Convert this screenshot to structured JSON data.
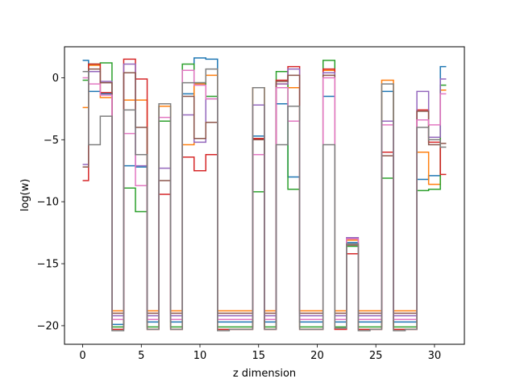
{
  "chart_data": {
    "type": "line",
    "drawstyle": "steps-mid",
    "title": "",
    "xlabel": "z dimension",
    "ylabel": "log(w)",
    "xlim": [
      -1.55,
      32.55
    ],
    "ylim": [
      -21.5,
      2.5
    ],
    "xticks": [
      0,
      5,
      10,
      15,
      20,
      25,
      30
    ],
    "yticks": [
      0,
      -5,
      -10,
      -15,
      -20
    ],
    "x": [
      0,
      1,
      2,
      3,
      4,
      5,
      6,
      7,
      8,
      9,
      10,
      11,
      12,
      13,
      14,
      15,
      16,
      17,
      18,
      19,
      20,
      21,
      22,
      23,
      24,
      25,
      26,
      27,
      28,
      29,
      30,
      31
    ],
    "grid": false,
    "legend": "none",
    "series": [
      {
        "color": "#1f77b4",
        "values": [
          1.4,
          -1.1,
          -1.3,
          -19.9,
          -7.1,
          -7.2,
          -19.7,
          -2.3,
          -19.7,
          -1.3,
          1.6,
          1.5,
          -19.7,
          -19.7,
          -19.7,
          -4.7,
          -19.7,
          -2.1,
          -8.0,
          -19.7,
          -19.7,
          -1.5,
          -19.7,
          -13.3,
          -19.7,
          -19.7,
          -1.1,
          -19.7,
          -19.7,
          -8.2,
          -7.9,
          0.9
        ]
      },
      {
        "color": "#ff7f0e",
        "values": [
          -2.4,
          1.0,
          -1.6,
          -18.8,
          -1.8,
          -1.8,
          -18.8,
          -2.3,
          -18.8,
          -5.4,
          -0.5,
          0.2,
          -18.8,
          -18.8,
          -18.8,
          -0.8,
          -18.8,
          -0.5,
          -0.8,
          -18.8,
          -18.8,
          0.6,
          -18.8,
          -13.1,
          -18.8,
          -18.8,
          -0.2,
          -18.8,
          -18.8,
          -6.0,
          -8.6,
          -1.0
        ]
      },
      {
        "color": "#2ca02c",
        "values": [
          -0.2,
          1.1,
          1.2,
          -20.1,
          -8.9,
          -10.8,
          -20.1,
          -3.5,
          -20.1,
          1.1,
          -0.4,
          -1.5,
          -20.1,
          -20.1,
          -20.1,
          -9.2,
          -20.1,
          0.5,
          -9.0,
          -20.1,
          -20.1,
          1.4,
          -20.1,
          -13.6,
          -20.1,
          -20.1,
          -8.1,
          -20.1,
          -20.1,
          -9.1,
          -9.0,
          -0.6
        ]
      },
      {
        "color": "#d62728",
        "values": [
          -8.3,
          1.1,
          -1.2,
          -20.3,
          1.5,
          -0.1,
          -20.3,
          -9.4,
          -20.3,
          -6.4,
          -7.5,
          -6.2,
          -20.3,
          -20.3,
          -20.3,
          -4.9,
          -20.3,
          -0.2,
          0.9,
          -20.3,
          -20.3,
          0.7,
          -20.3,
          -14.2,
          -20.3,
          -20.3,
          -6.0,
          -20.3,
          -20.3,
          -2.6,
          -5.2,
          -7.8
        ]
      },
      {
        "color": "#9467bd",
        "values": [
          -7.0,
          0.5,
          -0.3,
          -19.2,
          1.1,
          -7.1,
          -19.2,
          -7.3,
          -19.2,
          -3.0,
          -5.2,
          -1.7,
          -19.2,
          -19.2,
          -19.2,
          -2.2,
          -19.2,
          -0.5,
          0.7,
          -19.2,
          -19.2,
          0.4,
          -19.2,
          -12.9,
          -19.2,
          -19.2,
          -3.5,
          -19.2,
          -19.2,
          -1.1,
          -4.8,
          -0.1
        ]
      },
      {
        "color": "#8c564b",
        "values": [
          -7.2,
          0.7,
          -0.4,
          -19.0,
          0.4,
          -4.0,
          -19.0,
          -8.3,
          -19.0,
          -1.5,
          -4.9,
          -3.6,
          -19.0,
          -19.0,
          -19.0,
          -5.0,
          -19.0,
          -0.3,
          0.2,
          -19.0,
          -19.0,
          0.2,
          -19.0,
          -13.5,
          -19.0,
          -19.0,
          -6.3,
          -19.0,
          -19.0,
          -2.7,
          -5.4,
          -5.3
        ]
      },
      {
        "color": "#e377c2",
        "values": [
          0.0,
          -0.5,
          -1.4,
          -19.5,
          -4.5,
          -8.7,
          -19.5,
          -3.2,
          -19.5,
          0.6,
          -0.6,
          -1.7,
          -19.5,
          -19.5,
          -19.5,
          -6.2,
          -19.5,
          -0.8,
          -3.5,
          -19.5,
          -19.5,
          0.0,
          -19.5,
          -13.0,
          -19.5,
          -19.5,
          -3.8,
          -19.5,
          -19.5,
          -3.4,
          -3.8,
          -1.3
        ]
      },
      {
        "color": "#7f7f7f",
        "values": [
          0.5,
          -5.4,
          -3.1,
          -20.4,
          -2.6,
          -6.2,
          -20.3,
          -2.1,
          -20.3,
          -0.4,
          -0.4,
          0.7,
          -20.4,
          -20.3,
          -20.3,
          -0.8,
          -20.3,
          -5.4,
          -2.3,
          -20.3,
          -20.3,
          -5.4,
          -20.2,
          -13.4,
          -20.4,
          -20.3,
          -0.5,
          -20.4,
          -20.3,
          -4.0,
          -5.0,
          -5.6
        ]
      }
    ]
  }
}
